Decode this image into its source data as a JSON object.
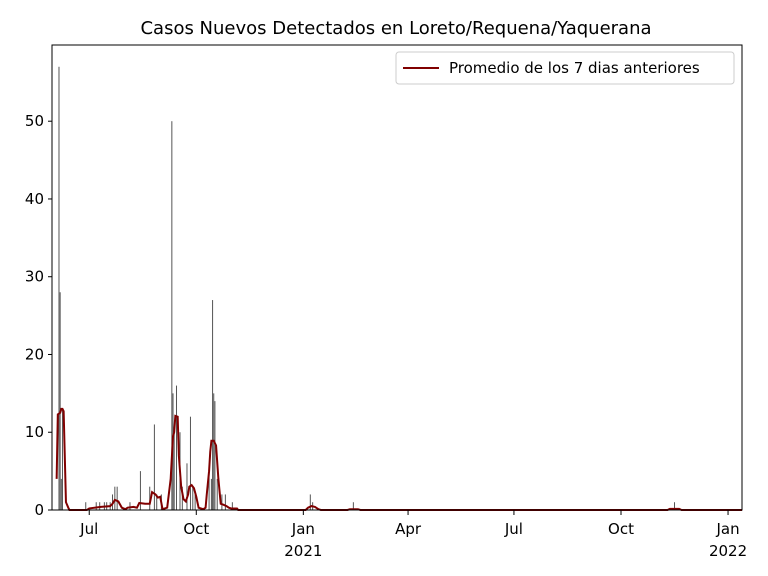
{
  "chart_data": {
    "type": "bar_line",
    "title": "Casos Nuevos Detectados en Loreto/Requena/Yaquerana",
    "xlim": [
      -32,
      561
    ],
    "xticks": [
      {
        "value": 0,
        "label": "Jul"
      },
      {
        "value": 92,
        "label": "Oct"
      },
      {
        "value": 184,
        "label": "Jan"
      },
      {
        "value": 274,
        "label": "Apr"
      },
      {
        "value": 365,
        "label": "Jul"
      },
      {
        "value": 457,
        "label": "Oct"
      },
      {
        "value": 549,
        "label": "Jan"
      }
    ],
    "xyears": [
      {
        "value": 184,
        "label": "2021"
      },
      {
        "value": 549,
        "label": "2022"
      }
    ],
    "ylim": [
      0,
      59.8
    ],
    "yticks": [
      0,
      10,
      20,
      30,
      40,
      50
    ],
    "legend": "upper right",
    "bars": {
      "color": "#555555",
      "x": [
        -26,
        -25,
        -24,
        -23,
        -3,
        6,
        9,
        13,
        15,
        18,
        20,
        22,
        24,
        35,
        44,
        52,
        56,
        58,
        62,
        71,
        72,
        73,
        75,
        78,
        80,
        84,
        87,
        89,
        91,
        103,
        105,
        106,
        107,
        108,
        110,
        114,
        117,
        123,
        190,
        192,
        227,
        503
      ],
      "values": [
        57,
        28,
        4,
        13,
        1,
        1,
        1,
        1,
        1,
        1,
        2,
        3,
        3,
        1,
        5,
        3,
        11,
        2,
        2,
        50,
        15,
        10,
        16,
        10,
        3,
        6,
        12,
        3,
        2,
        5,
        4,
        27,
        15,
        14,
        4,
        2,
        2,
        1,
        2,
        1,
        1,
        1
      ]
    },
    "series": [
      {
        "name": "Promedio de los 7 dias anteriores",
        "color": "#800000",
        "x": [
          -28,
          -27,
          -25,
          -24,
          -23,
          -22,
          -20,
          -18,
          -17,
          -2,
          0,
          10,
          18,
          20,
          22,
          25,
          28,
          31,
          33,
          38,
          41,
          43,
          48,
          52,
          54,
          57,
          59,
          61,
          63,
          67,
          70,
          72,
          73,
          74,
          76,
          77,
          79,
          81,
          83,
          85,
          86,
          88,
          90,
          92,
          94,
          98,
          100,
          101,
          103,
          104,
          105,
          107,
          109,
          111,
          113,
          115,
          118,
          120,
          122,
          127,
          128,
          186,
          188,
          191,
          194,
          197,
          199,
          222,
          224,
          231,
          233,
          497,
          499,
          507,
          509,
          561
        ],
        "values": [
          4,
          12.3,
          12.5,
          13,
          13,
          12.7,
          1,
          0.3,
          0,
          0,
          0.2,
          0.4,
          0.5,
          0.8,
          1.3,
          1.1,
          0.3,
          0.1,
          0.3,
          0.4,
          0.3,
          0.9,
          0.8,
          0.8,
          2.3,
          2,
          1.6,
          1.7,
          0.1,
          0.3,
          4,
          9.5,
          10,
          12.1,
          12,
          7,
          3,
          1.4,
          1.1,
          2,
          3,
          3.2,
          2.8,
          1.7,
          0.3,
          0.1,
          0.3,
          2,
          5,
          7.5,
          8.9,
          8.9,
          8.3,
          4,
          0.8,
          0.7,
          0.5,
          0.3,
          0.2,
          0.2,
          0,
          0,
          0.3,
          0.5,
          0.4,
          0.1,
          0,
          0,
          0.1,
          0.1,
          0,
          0,
          0.15,
          0.15,
          0,
          0
        ]
      }
    ]
  }
}
